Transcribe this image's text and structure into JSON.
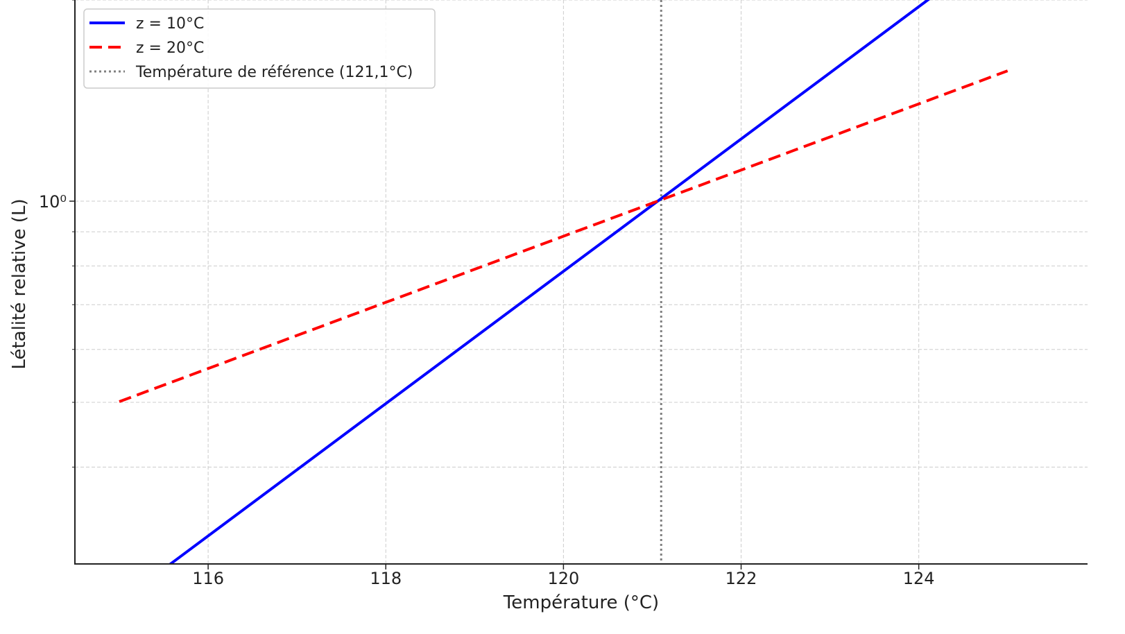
{
  "chart_data": {
    "type": "line",
    "title": "",
    "xlabel": "Température (°C)",
    "ylabel": "Létalité relative (L)",
    "yscale": "log",
    "xlim": [
      114.5,
      125.9
    ],
    "ylim": [
      0.2865,
      2.0
    ],
    "xticks": [
      116,
      118,
      120,
      122,
      124
    ],
    "xtick_labels": [
      "116",
      "118",
      "120",
      "122",
      "124"
    ],
    "yticks": [
      1.0
    ],
    "ytick_labels": [
      "10⁰"
    ],
    "y_minor_ticks": [
      0.4,
      0.5,
      0.6,
      0.7,
      0.8,
      0.9,
      2.0
    ],
    "grid": true,
    "legend_position": "top-left",
    "series": [
      {
        "name": "z = 10°C",
        "color": "#0000ff",
        "line_style": "solid",
        "x": [
          115,
          125
        ],
        "values": [
          0.2512,
          2.4547
        ]
      },
      {
        "name": "z = 20°C",
        "color": "#ff0000",
        "line_style": "dashed",
        "x": [
          115,
          125
        ],
        "values": [
          0.5012,
          1.5668
        ]
      }
    ],
    "reference_line": {
      "name": "Température de référence (121,1°C)",
      "x": 121.1,
      "color": "#808080",
      "line_style": "dotted"
    }
  }
}
